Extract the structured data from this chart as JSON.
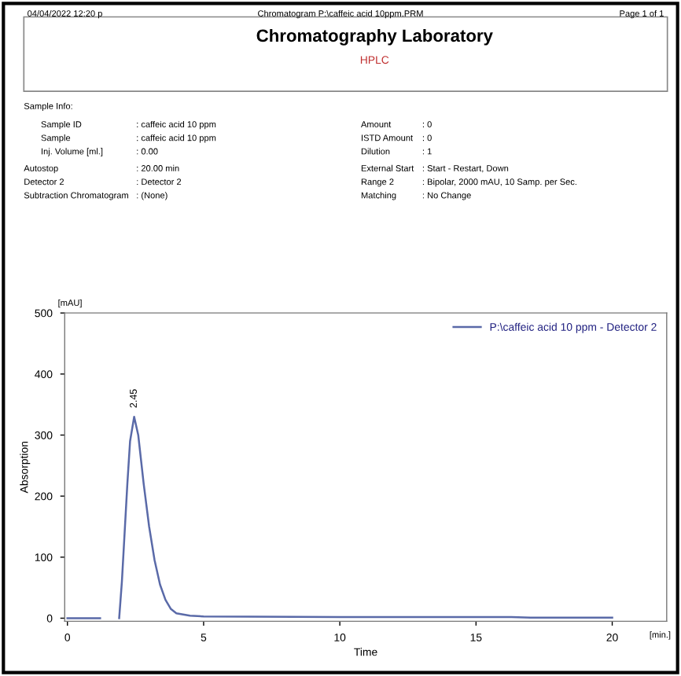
{
  "chart_data": {
    "type": "line",
    "title": "Chromatography Laboratory",
    "subtitle": "HPLC",
    "xlabel": "Time",
    "ylabel": "Absorption",
    "annotations": [
      "04/04/2022 12:20 p",
      "Chromatogram P:\\caffeic acid 10ppm.PRM",
      "Page 1 of 1",
      "Sample Info:",
      "Sample ID",
      ": caffeic acid 10 ppm",
      "Sample",
      ": caffeic acid 10 ppm",
      "Inj. Volume [ml.]",
      ": 0.00",
      "Amount",
      ": 0",
      "ISTD Amount",
      ": 0",
      "Dilution",
      ": 1",
      "Autostop",
      ": 20.00 min",
      "Detector 2",
      ": Detector 2",
      "Subtraction Chromatogram",
      ": (None)",
      "External Start",
      ": Start - Restart, Down",
      "Range 2",
      ": Bipolar, 2000 mAU, 10 Samp. per Sec.",
      "Matching",
      ": No Change",
      "[mAU]",
      "[min.]",
      {
        "text": "2.45",
        "x": 2.45,
        "y": 330
      }
    ],
    "x": [
      0,
      1.2,
      1.25,
      1.85,
      1.9,
      2.0,
      2.1,
      2.2,
      2.3,
      2.45,
      2.6,
      2.8,
      3.0,
      3.2,
      3.4,
      3.6,
      3.8,
      4.0,
      4.5,
      5,
      10,
      16.3,
      17,
      20
    ],
    "series": [
      {
        "name": "P:\\caffeic acid 10 ppm - Detector 2",
        "color": "#5a6aa8",
        "values": [
          0,
          0,
          null,
          null,
          0,
          60,
          140,
          220,
          290,
          330,
          300,
          220,
          150,
          95,
          55,
          30,
          15,
          8,
          4,
          3,
          2,
          2,
          1,
          1
        ]
      }
    ],
    "xlim": [
      -0.1,
      22
    ],
    "ylim": [
      -5,
      500
    ],
    "xticks": [
      0,
      5,
      10,
      15,
      20
    ],
    "yticks": [
      0,
      100,
      200,
      300,
      400,
      500
    ],
    "legend": "top right",
    "grid": false
  }
}
